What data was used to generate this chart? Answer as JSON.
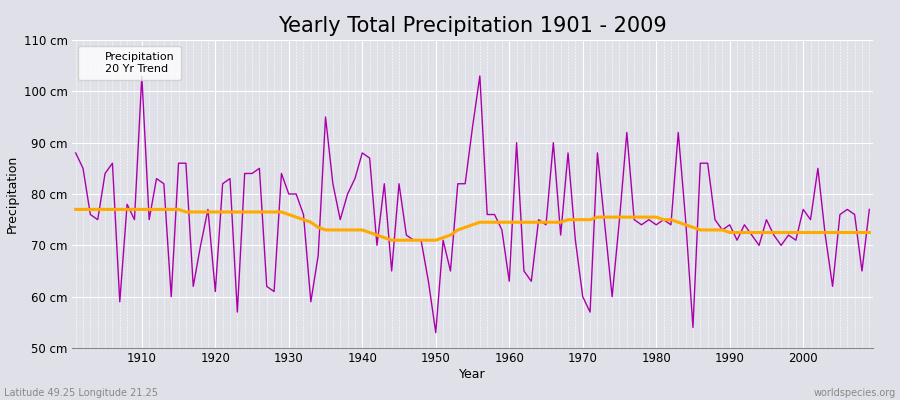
{
  "title": "Yearly Total Precipitation 1901 - 2009",
  "xlabel": "Year",
  "ylabel": "Precipitation",
  "subtitle_left": "Latitude 49.25 Longitude 21.25",
  "subtitle_right": "worldspecies.org",
  "years": [
    1901,
    1902,
    1903,
    1904,
    1905,
    1906,
    1907,
    1908,
    1909,
    1910,
    1911,
    1912,
    1913,
    1914,
    1915,
    1916,
    1917,
    1918,
    1919,
    1920,
    1921,
    1922,
    1923,
    1924,
    1925,
    1926,
    1927,
    1928,
    1929,
    1930,
    1931,
    1932,
    1933,
    1934,
    1935,
    1936,
    1937,
    1938,
    1939,
    1940,
    1941,
    1942,
    1943,
    1944,
    1945,
    1946,
    1947,
    1948,
    1949,
    1950,
    1951,
    1952,
    1953,
    1954,
    1955,
    1956,
    1957,
    1958,
    1959,
    1960,
    1961,
    1962,
    1963,
    1964,
    1965,
    1966,
    1967,
    1968,
    1969,
    1970,
    1971,
    1972,
    1973,
    1974,
    1975,
    1976,
    1977,
    1978,
    1979,
    1980,
    1981,
    1982,
    1983,
    1984,
    1985,
    1986,
    1987,
    1988,
    1989,
    1990,
    1991,
    1992,
    1993,
    1994,
    1995,
    1996,
    1997,
    1998,
    1999,
    2000,
    2001,
    2002,
    2003,
    2004,
    2005,
    2006,
    2007,
    2008,
    2009
  ],
  "precipitation": [
    88,
    85,
    76,
    75,
    84,
    86,
    59,
    78,
    75,
    103,
    75,
    83,
    82,
    60,
    86,
    86,
    62,
    70,
    77,
    61,
    82,
    83,
    57,
    84,
    84,
    85,
    62,
    61,
    84,
    80,
    80,
    76,
    59,
    68,
    95,
    82,
    75,
    80,
    83,
    88,
    87,
    70,
    82,
    65,
    82,
    72,
    71,
    71,
    63,
    53,
    71,
    65,
    82,
    82,
    93,
    103,
    76,
    76,
    73,
    63,
    90,
    65,
    63,
    75,
    74,
    90,
    72,
    88,
    71,
    60,
    57,
    88,
    74,
    60,
    75,
    92,
    75,
    74,
    75,
    74,
    75,
    74,
    92,
    75,
    54,
    86,
    86,
    75,
    73,
    74,
    71,
    74,
    72,
    70,
    75,
    72,
    70,
    72,
    71,
    77,
    75,
    85,
    72,
    62,
    76,
    77,
    76,
    65,
    77
  ],
  "trend": [
    77.0,
    77.0,
    77.0,
    77.0,
    77.0,
    77.0,
    77.0,
    77.0,
    77.0,
    77.0,
    77.0,
    77.0,
    77.0,
    77.0,
    77.0,
    76.5,
    76.5,
    76.5,
    76.5,
    76.5,
    76.5,
    76.5,
    76.5,
    76.5,
    76.5,
    76.5,
    76.5,
    76.5,
    76.5,
    76.0,
    75.5,
    75.0,
    74.5,
    73.5,
    73.0,
    73.0,
    73.0,
    73.0,
    73.0,
    73.0,
    72.5,
    72.0,
    71.5,
    71.0,
    71.0,
    71.0,
    71.0,
    71.0,
    71.0,
    71.0,
    71.5,
    72.0,
    73.0,
    73.5,
    74.0,
    74.5,
    74.5,
    74.5,
    74.5,
    74.5,
    74.5,
    74.5,
    74.5,
    74.5,
    74.5,
    74.5,
    74.5,
    75.0,
    75.0,
    75.0,
    75.0,
    75.5,
    75.5,
    75.5,
    75.5,
    75.5,
    75.5,
    75.5,
    75.5,
    75.5,
    75.0,
    75.0,
    74.5,
    74.0,
    73.5,
    73.0,
    73.0,
    73.0,
    73.0,
    72.5,
    72.5,
    72.5,
    72.5,
    72.5,
    72.5,
    72.5,
    72.5,
    72.5,
    72.5,
    72.5,
    72.5,
    72.5,
    72.5,
    72.5,
    72.5,
    72.5,
    72.5,
    72.5,
    72.5
  ],
  "precip_color": "#aa00aa",
  "trend_color": "#ffaa00",
  "bg_color": "#e0e0e8",
  "plot_bg_color": "#e0e0e8",
  "ylim": [
    50,
    110
  ],
  "yticks": [
    50,
    60,
    70,
    80,
    90,
    100,
    110
  ],
  "ytick_labels": [
    "50 cm",
    "60 cm",
    "70 cm",
    "80 cm",
    "90 cm",
    "100 cm",
    "110 cm"
  ],
  "grid_color": "#ffffff",
  "title_fontsize": 15,
  "axis_label_fontsize": 9,
  "tick_fontsize": 8.5
}
